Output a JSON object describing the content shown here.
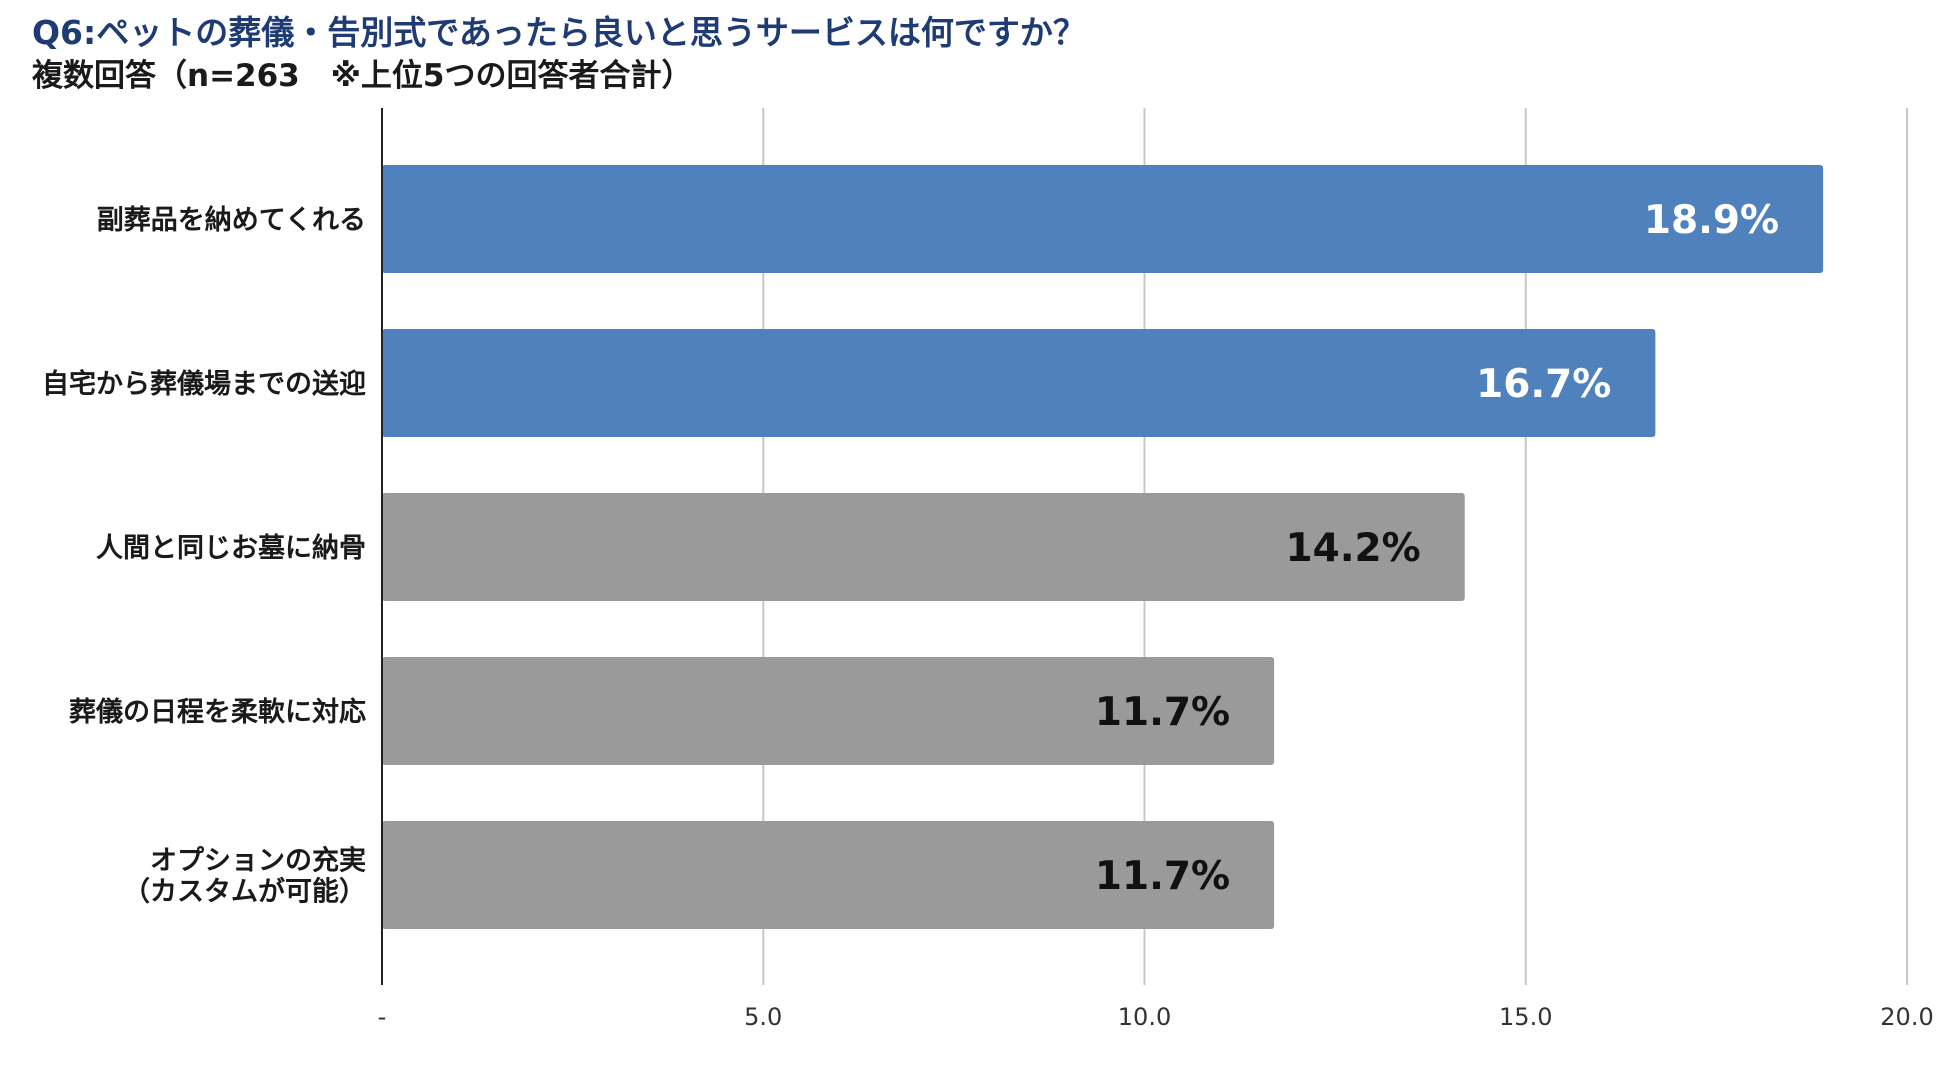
{
  "chart_data": {
    "type": "bar",
    "orientation": "horizontal",
    "title": "Q6:ペットの葬儀・告別式であったら良いと思うサービスは何ですか？",
    "subtitle": "複数回答（n=263　※上位5つの回答者合計）",
    "categories": [
      [
        "副葬品を納めてくれる"
      ],
      [
        "自宅から葬儀場までの送迎"
      ],
      [
        "人間と同じお墓に納骨"
      ],
      [
        "葬儀の日程を柔軟に対応"
      ],
      [
        "オプションの充実",
        "（カスタムが可能）"
      ]
    ],
    "values": [
      18.9,
      16.7,
      14.2,
      11.7,
      11.7
    ],
    "data_labels": [
      "18.9%",
      "16.7%",
      "14.2%",
      "11.7%",
      "11.7%"
    ],
    "bar_colors": [
      "#4f81bd",
      "#4f81bd",
      "#9a9a9a",
      "#9a9a9a",
      "#9a9a9a"
    ],
    "label_colors": [
      "#ffffff",
      "#ffffff",
      "#111111",
      "#111111",
      "#111111"
    ],
    "xlim": [
      0,
      20
    ],
    "x_ticks": [
      0,
      5,
      10,
      15,
      20
    ],
    "x_tick_labels": [
      "-",
      "5.0",
      "10.0",
      "15.0",
      "20.0"
    ],
    "grid": "vertical",
    "gridline_color": "#c8c8c8",
    "axis_color": "#222222"
  }
}
